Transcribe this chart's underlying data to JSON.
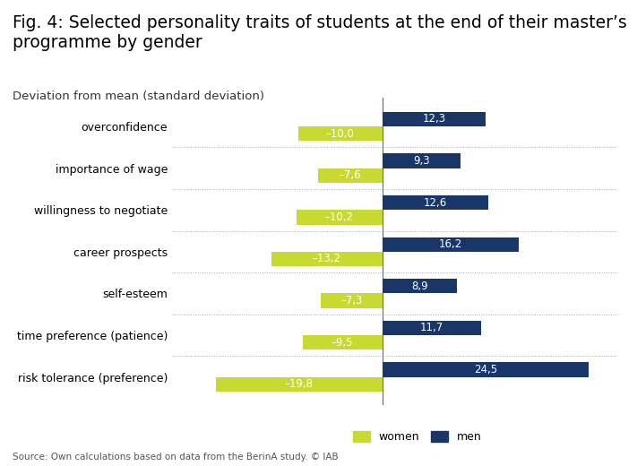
{
  "title_line1": "Fig. 4: Selected personality traits of students at the end of their master’s",
  "title_line2": "programme by gender",
  "subtitle": "Deviation from mean (standard deviation)",
  "source": "Source: Own calculations based on data from the BerinA study. © IAB",
  "categories": [
    "overconfidence",
    "importance of wage",
    "willingness to negotiate",
    "career prospects",
    "self-esteem",
    "time preference (patience)",
    "risk tolerance (preference)"
  ],
  "women_values": [
    -10.0,
    -7.6,
    -10.2,
    -13.2,
    -7.3,
    -9.5,
    -19.8
  ],
  "men_values": [
    12.3,
    9.3,
    12.6,
    16.2,
    8.9,
    11.7,
    24.5
  ],
  "women_labels": [
    "–10,0",
    "–7,6",
    "–10,2",
    "–13,2",
    "–7,3",
    "–9,5",
    "–19,8"
  ],
  "men_labels": [
    "12,3",
    "9,3",
    "12,6",
    "16,2",
    "8,9",
    "11,7",
    "24,5"
  ],
  "women_color": "#c8d932",
  "men_color": "#1a3668",
  "bar_height": 0.35,
  "background_color": "#ffffff",
  "xlim": [
    -25,
    28
  ],
  "legend_women": "women",
  "legend_men": "men",
  "title_fontsize": 13.5,
  "subtitle_fontsize": 9.5,
  "label_fontsize": 9,
  "bar_label_fontsize": 8.5,
  "source_fontsize": 7.5
}
